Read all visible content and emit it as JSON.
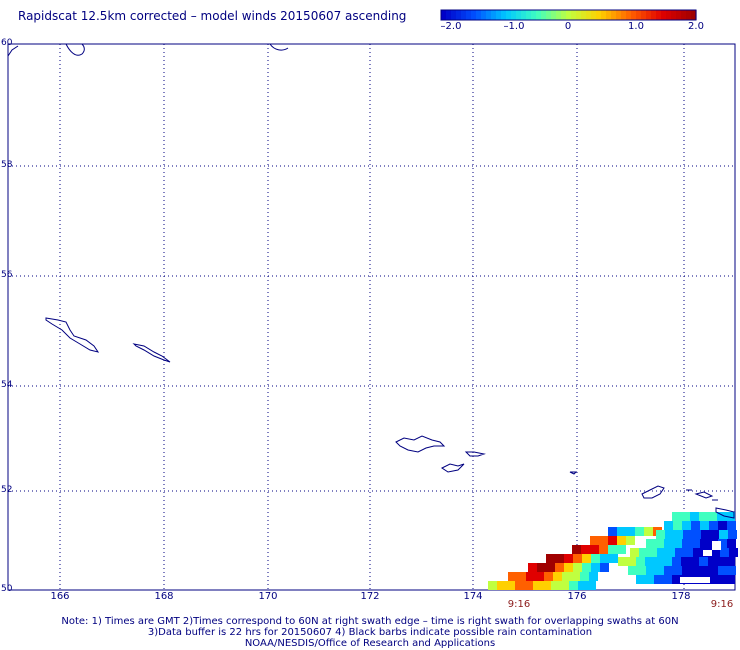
{
  "title": "Rapidscat 12.5km corrected – model winds 20150607 ascending",
  "colorbar": {
    "labels": [
      "–2.0",
      "–1.0",
      "0",
      "1.0",
      "2.0"
    ],
    "range": [
      -2.0,
      2.0
    ],
    "colors": [
      "#0000c8",
      "#0050ff",
      "#00c8ff",
      "#40ffc0",
      "#c0ff40",
      "#ffd000",
      "#ff6000",
      "#e00000",
      "#a00000"
    ]
  },
  "map": {
    "lat_labels": [
      "60",
      "58",
      "56",
      "54",
      "52",
      "50"
    ],
    "lon_labels": [
      "166",
      "168",
      "170",
      "172",
      "174",
      "176",
      "178"
    ],
    "time_labels": [
      "9:16",
      "9:16"
    ],
    "grid_color": "#000080",
    "coast_color": "#000080"
  },
  "notes": {
    "line1": "Note: 1) Times are GMT 2)Times correspond to 60N at right swath edge – time is right swath for overlapping swaths at 60N",
    "line2": "3)Data buffer is 22 hrs for 20150607 4) Black barbs indicate possible rain contamination",
    "line3": "NOAA/NESDIS/Office of Research and Applications"
  }
}
